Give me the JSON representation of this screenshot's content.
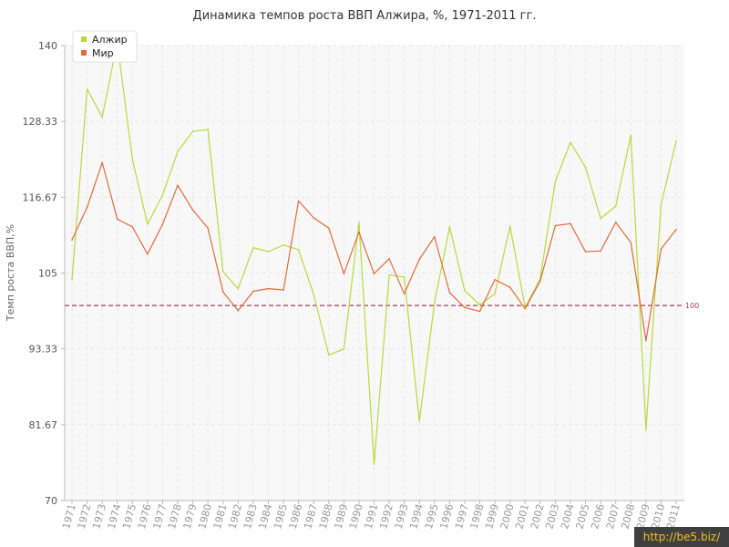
{
  "chart_data": {
    "type": "line",
    "title": "Динамика темпов роста ВВП Алжира, %, 1971-2011 гг.",
    "ylabel": "Темп роста ВВП,%",
    "xlabel": "",
    "ylim": [
      70,
      140
    ],
    "yticks": [
      "140",
      "128.33",
      "116.67",
      "105",
      "93.33",
      "81.67",
      "70"
    ],
    "x": [
      "1971",
      "1972",
      "1973",
      "1974",
      "1975",
      "1976",
      "1977",
      "1978",
      "1979",
      "1980",
      "1981",
      "1982",
      "1983",
      "1984",
      "1985",
      "1986",
      "1987",
      "1988",
      "1989",
      "1990",
      "1991",
      "1992",
      "1993",
      "1994",
      "1995",
      "1996",
      "1997",
      "1998",
      "1999",
      "2000",
      "2001",
      "2002",
      "2003",
      "2004",
      "2005",
      "2006",
      "2007",
      "2008",
      "2009",
      "2010",
      "2011"
    ],
    "series": [
      {
        "name": "Алжир",
        "color": "#b8d93a",
        "values": [
          104,
          133.3,
          129,
          140.5,
          122.5,
          112.5,
          117,
          123.7,
          126.8,
          127.1,
          105.2,
          102.6,
          108.9,
          108.3,
          109.3,
          108.6,
          101.7,
          92.4,
          93.3,
          112.8,
          75.6,
          104.7,
          104.4,
          82.2,
          100.4,
          112.1,
          102.3,
          100.1,
          101.8,
          112.2,
          99.7,
          104.1,
          119.1,
          125.1,
          121.3,
          113.4,
          115.3,
          126.2,
          80.9,
          115.5,
          125.3
        ]
      },
      {
        "name": "Мир",
        "color": "#e06a3a",
        "values": [
          110.1,
          115.1,
          122,
          113.3,
          112.1,
          107.9,
          112.5,
          118.5,
          114.7,
          111.9,
          102.1,
          99.2,
          102.2,
          102.6,
          102.4,
          116.1,
          113.5,
          111.9,
          104.9,
          111.3,
          104.9,
          107.2,
          101.8,
          107.1,
          110.6,
          102,
          99.7,
          99.1,
          104,
          102.8,
          99.5,
          103.8,
          112.3,
          112.6,
          108.3,
          108.4,
          112.8,
          109.7,
          94.6,
          108.7,
          111.7
        ]
      }
    ],
    "reference_line": {
      "value": 100,
      "label": "100",
      "color": "#a04050"
    },
    "legend_placement": "top-left",
    "grid": true
  },
  "watermark": "http://be5.biz/"
}
